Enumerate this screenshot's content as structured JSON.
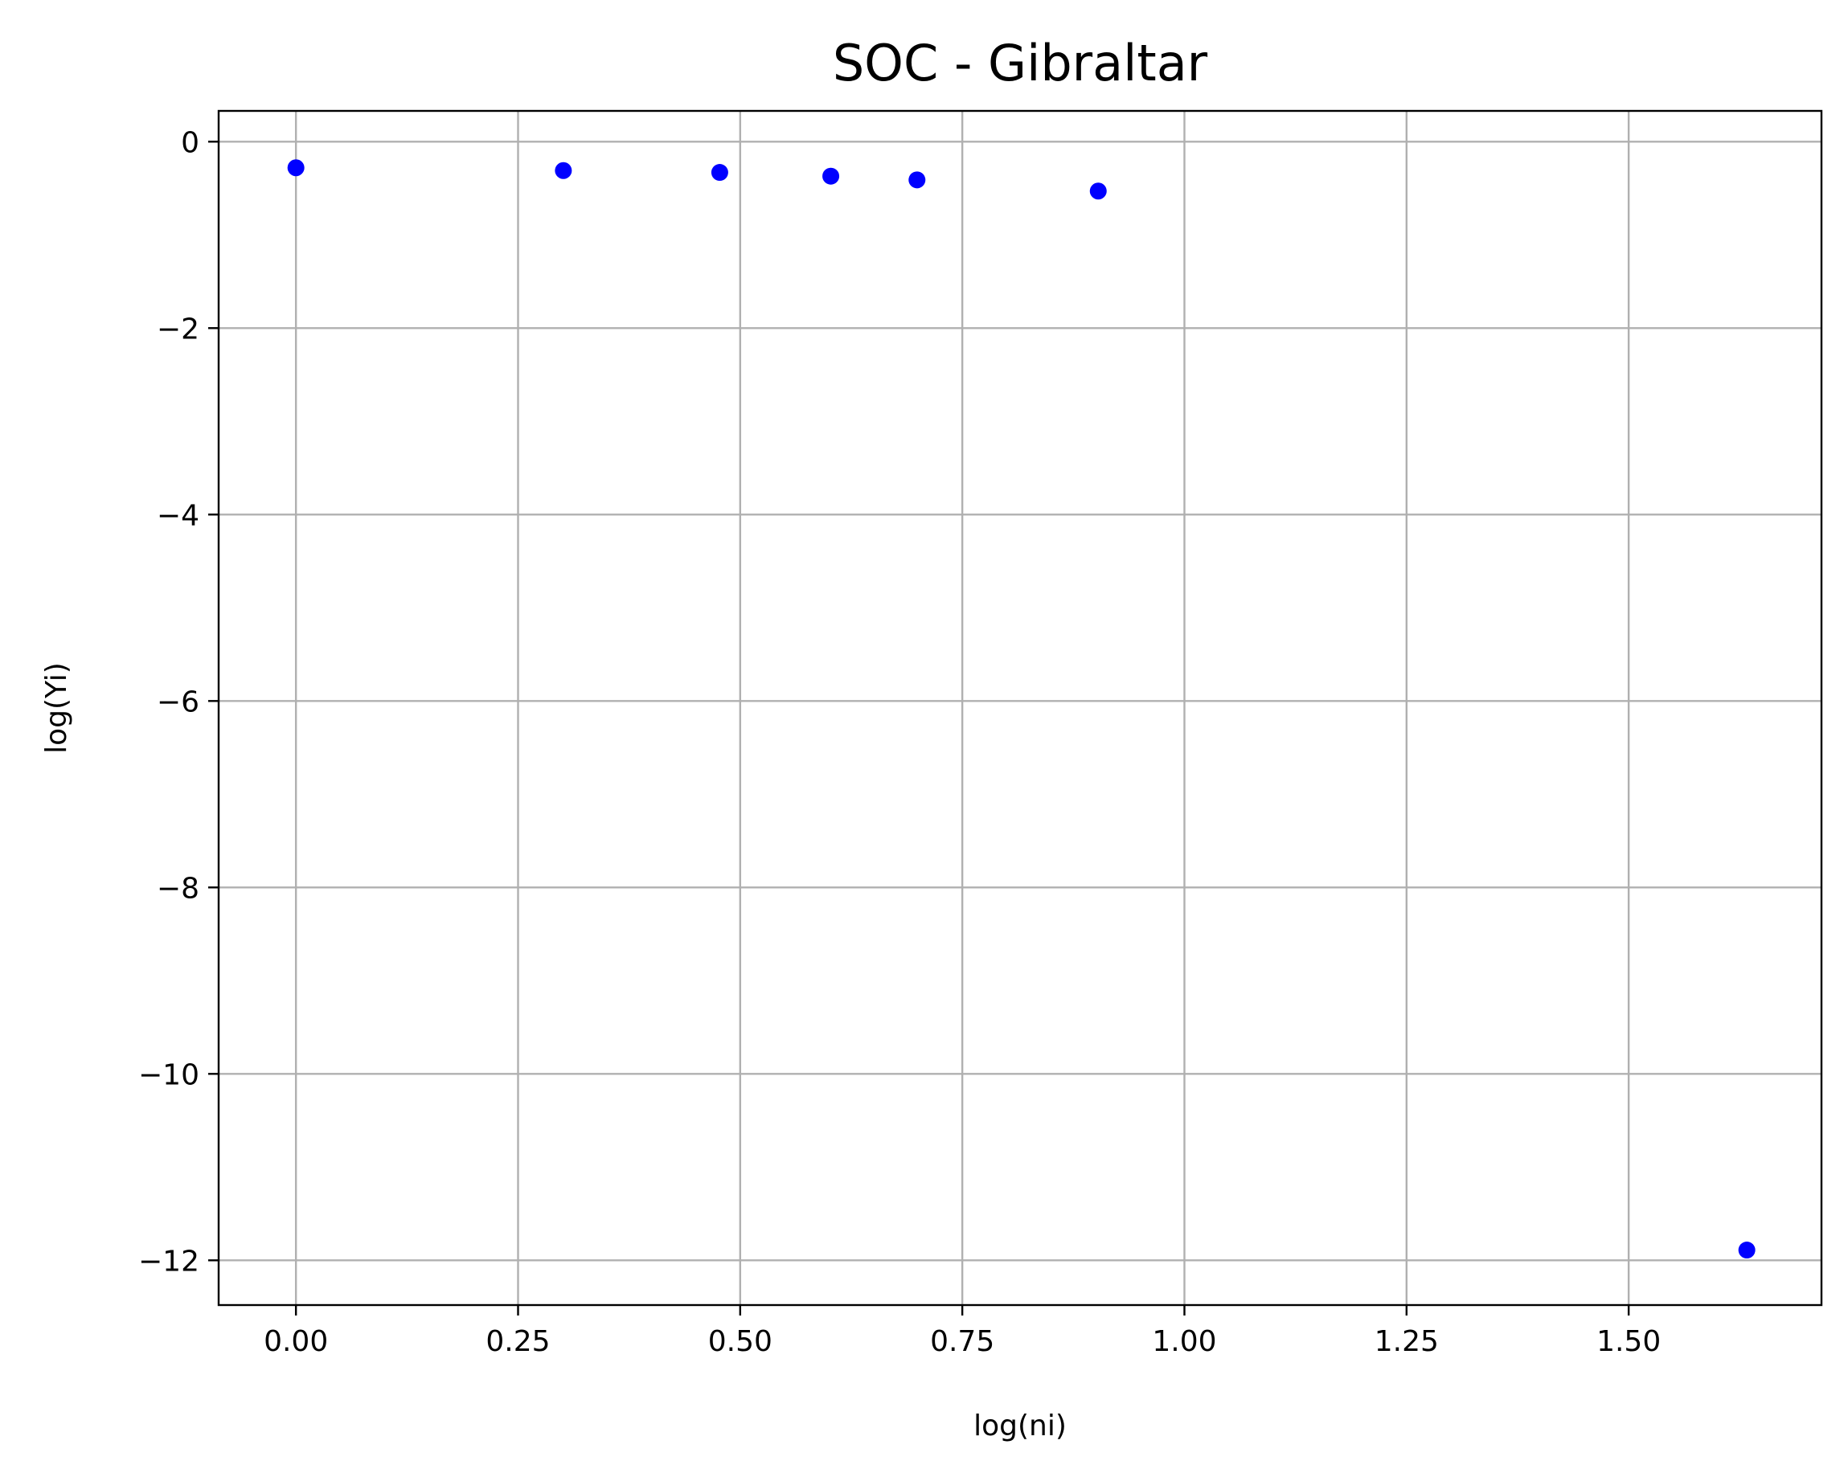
{
  "chart_data": {
    "type": "scatter",
    "title": "SOC - Gibraltar",
    "xlabel": "log(ni)",
    "ylabel": "log(Yi)",
    "xlim": [
      -0.087,
      1.717
    ],
    "ylim": [
      -12.48,
      0.33
    ],
    "grid": true,
    "x_ticks": [
      0.0,
      0.25,
      0.5,
      0.75,
      1.0,
      1.25,
      1.5
    ],
    "x_tick_labels": [
      "0.00",
      "0.25",
      "0.50",
      "0.75",
      "1.00",
      "1.25",
      "1.50"
    ],
    "y_ticks": [
      0,
      -2,
      -4,
      -6,
      -8,
      -10,
      -12
    ],
    "y_tick_labels": [
      "0",
      "−2",
      "−4",
      "−6",
      "−8",
      "−10",
      "−12"
    ],
    "series": [
      {
        "color": "#0000ff",
        "x": [
          0.0,
          0.301,
          0.477,
          0.602,
          0.699,
          0.903,
          1.633
        ],
        "y": [
          -0.28,
          -0.31,
          -0.33,
          -0.37,
          -0.41,
          -0.53,
          -11.89
        ]
      }
    ]
  }
}
